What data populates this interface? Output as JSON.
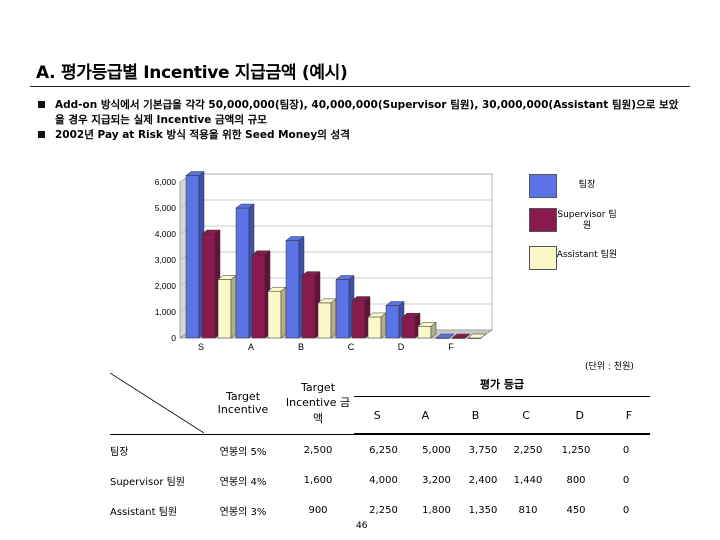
{
  "title": "A. 평가등급별 Incentive 지급금액 (예시)",
  "bullets": [
    "Add-on 방식에서 기본급을 각각 50,000,000(팀장), 40,000,000(Supervisor 팀원), 30,000,000(Assistant 팀원)으로 보았을 경우 지급되는 실제 Incentive 금액의 규모",
    "2002년 Pay at Risk 방식 적용을 위한 Seed Money의 성격"
  ],
  "chart_data": {
    "type": "bar",
    "categories": [
      "S",
      "A",
      "B",
      "C",
      "D",
      "F"
    ],
    "series": [
      {
        "name": "팀장",
        "color": "#5a74e8",
        "values": [
          6250,
          5000,
          3750,
          2250,
          1250,
          0
        ]
      },
      {
        "name": "Supervisor 팀원",
        "color": "#8a1a4e",
        "values": [
          4000,
          3200,
          2400,
          1440,
          800,
          0
        ]
      },
      {
        "name": "Assistant 팀원",
        "color": "#fbf8c8",
        "values": [
          2250,
          1800,
          1350,
          810,
          450,
          0
        ]
      }
    ],
    "y_ticks": [
      "0",
      "1,000",
      "2,000",
      "3,000",
      "4,000",
      "5,000",
      "6,000"
    ],
    "ylim": [
      0,
      6000
    ],
    "grid": true,
    "legend_position": "right"
  },
  "unit_note": "(단위 : 천원)",
  "table": {
    "header": {
      "target_incentive": "Target Incentive",
      "target_amount": "Target Incentive 금액",
      "grade_group": "평가 등급",
      "grades": [
        "S",
        "A",
        "B",
        "C",
        "D",
        "F"
      ]
    },
    "rows": [
      {
        "label": "팀장",
        "incentive": "연봉의 5%",
        "amount": "2,500",
        "values": [
          "6,250",
          "5,000",
          "3,750",
          "2,250",
          "1,250",
          "0"
        ]
      },
      {
        "label": "Supervisor 팀원",
        "incentive": "연봉의 4%",
        "amount": "1,600",
        "values": [
          "4,000",
          "3,200",
          "2,400",
          "1,440",
          "800",
          "0"
        ]
      },
      {
        "label": "Assistant 팀원",
        "incentive": "연봉의 3%",
        "amount": "900",
        "values": [
          "2,250",
          "1,800",
          "1,350",
          "810",
          "450",
          "0"
        ]
      }
    ]
  },
  "page_number": "46"
}
